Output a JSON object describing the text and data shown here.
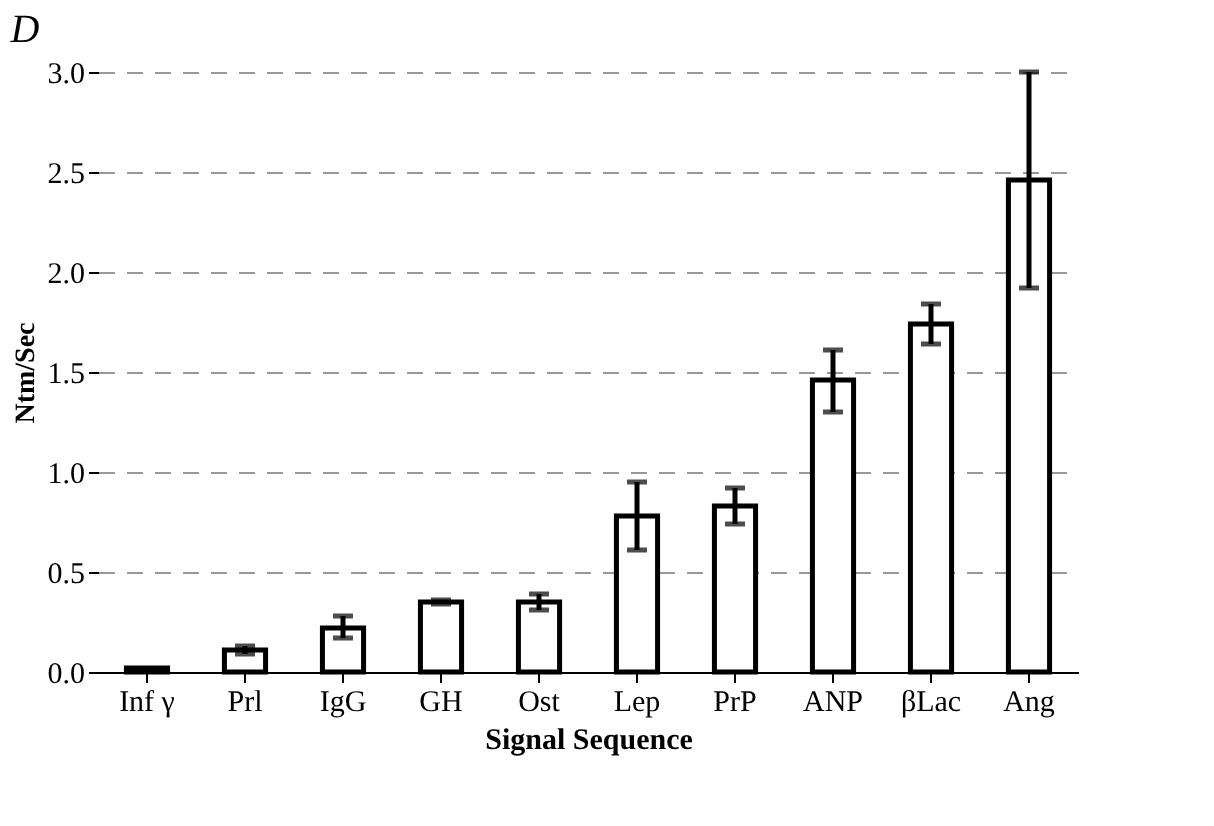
{
  "chart_data": {
    "type": "bar",
    "title": "D",
    "xlabel": "Signal Sequence",
    "ylabel": "Ntm/Sec",
    "categories": [
      "Inf γ",
      "Prl",
      "IgG",
      "GH",
      "Ost",
      "Lep",
      "PrP",
      "ANP",
      "βLac",
      "Ang"
    ],
    "values": [
      0.02,
      0.11,
      0.22,
      0.35,
      0.35,
      0.78,
      0.83,
      1.46,
      1.74,
      2.46
    ],
    "errors": [
      null,
      0.02,
      [
        0.17,
        0.28
      ],
      0.01,
      [
        0.31,
        0.39
      ],
      [
        0.61,
        0.95
      ],
      [
        0.74,
        0.92
      ],
      [
        1.3,
        1.61
      ],
      [
        1.64,
        1.84
      ],
      [
        1.92,
        3.0
      ]
    ],
    "color": "#ffffff",
    "ylim": [
      0,
      3.0
    ],
    "yticks": [
      {
        "value": 0,
        "label": "0.0"
      },
      0.5,
      {
        "value": 1,
        "label": "1.0"
      },
      1.5,
      {
        "value": 2,
        "label": "2.0"
      },
      2.5,
      {
        "value": 3,
        "label": "3.0"
      }
    ],
    "grid": "y"
  }
}
